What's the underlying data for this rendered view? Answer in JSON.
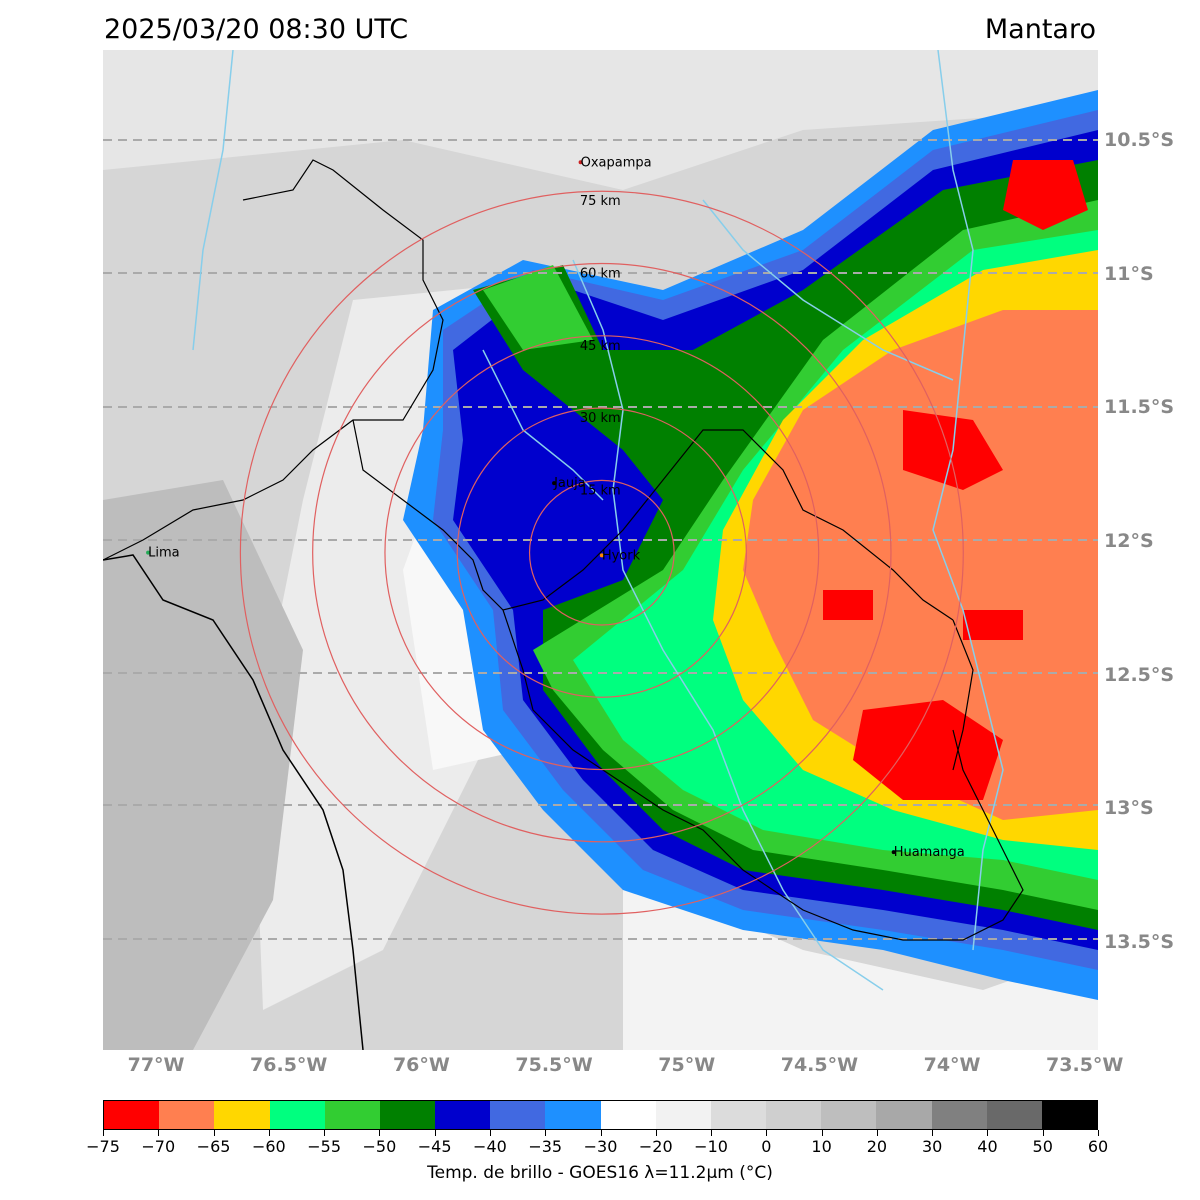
{
  "header": {
    "datetime": "2025/03/20 08:30 UTC",
    "region": "Mantaro"
  },
  "map": {
    "lat_labels": [
      "10.5°S",
      "11°S",
      "11.5°S",
      "12°S",
      "12.5°S",
      "13°S",
      "13.5°S"
    ],
    "lon_labels": [
      "77°W",
      "76.5°W",
      "76°W",
      "75.5°W",
      "75°W",
      "74.5°W",
      "74°W",
      "73.5°W"
    ],
    "cities": [
      {
        "name": "Oxapampa",
        "lon": -75.4,
        "lat": -10.58,
        "color": "#cc2222"
      },
      {
        "name": "Lima",
        "lon": -77.03,
        "lat": -12.04,
        "color": "#22aa55"
      },
      {
        "name": "Jauja",
        "lon": -75.5,
        "lat": -11.78,
        "color": "#000000"
      },
      {
        "name": "Huamanga",
        "lon": -74.22,
        "lat": -13.16,
        "color": "#000000"
      },
      {
        "name": "Hyork",
        "lon": -75.32,
        "lat": -12.05,
        "color": "#ff8800"
      }
    ],
    "range_rings": {
      "center_lon": -75.32,
      "center_lat": -12.04,
      "labels": [
        "15 km",
        "30 km",
        "45 km",
        "60 km",
        "75 km"
      ],
      "color": "#e06060"
    }
  },
  "colorbar": {
    "colors": [
      "#ff0000",
      "#ff7f50",
      "#ffd700",
      "#00ff7f",
      "#32cd32",
      "#008000",
      "#0000cd",
      "#4169e1",
      "#1e90ff",
      "#ffffff",
      "#f2f2f2",
      "#dcdcdc",
      "#cfcfcf",
      "#bebebe",
      "#a8a8a8",
      "#808080",
      "#696969",
      "#000000"
    ],
    "tick_labels": [
      "−75",
      "−70",
      "−65",
      "−60",
      "−55",
      "−50",
      "−45",
      "−40",
      "−35",
      "−30",
      "−20",
      "−10",
      "0",
      "10",
      "20",
      "30",
      "40",
      "50",
      "60"
    ],
    "label": "Temp. de brillo - GOES16 λ=11.2μm (°C)"
  }
}
